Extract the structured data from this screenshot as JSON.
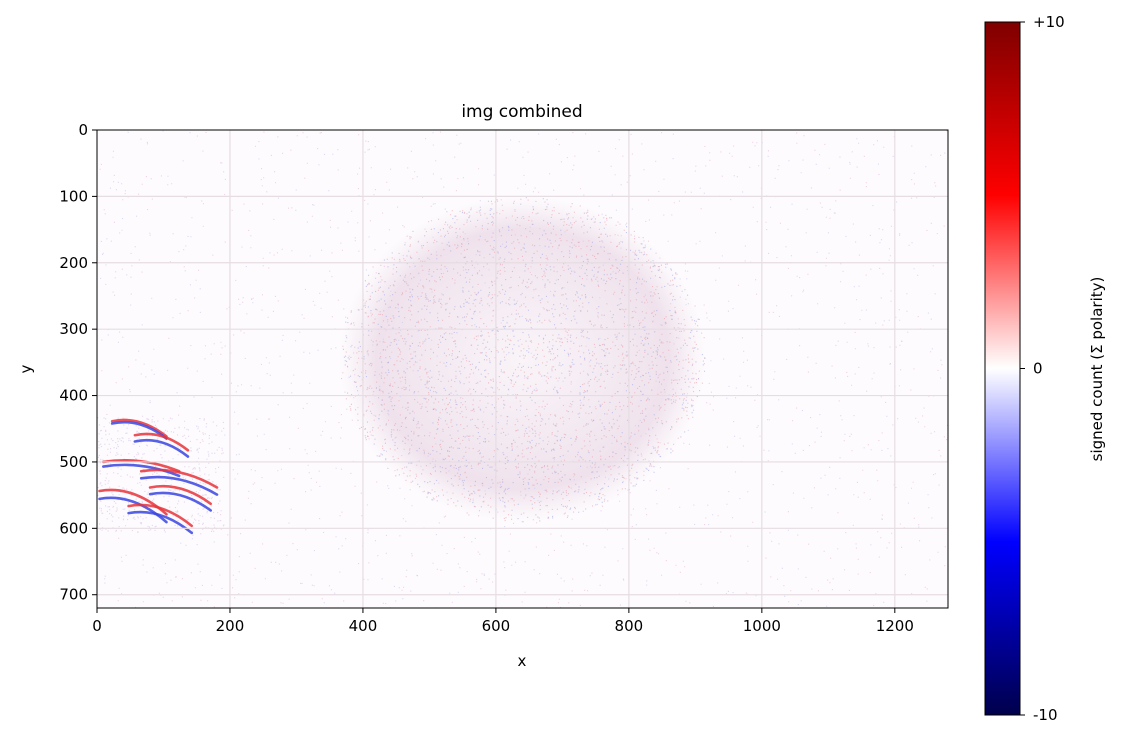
{
  "chart_data": {
    "type": "heatmap",
    "title": "img combined",
    "xlabel": "x",
    "ylabel": "y",
    "xlim": [
      0,
      1280
    ],
    "ylim": [
      720,
      0
    ],
    "y_inverted": true,
    "grid": true,
    "x_ticks": [
      0,
      200,
      400,
      600,
      800,
      1000,
      1200
    ],
    "y_ticks": [
      0,
      100,
      200,
      300,
      400,
      500,
      600,
      700
    ],
    "colorbar": {
      "label": "signed count (Σ polarity)",
      "colormap": "seismic",
      "range": [
        -10,
        10
      ],
      "ticks": [
        {
          "value": 10,
          "label": "+10"
        },
        {
          "value": 0,
          "label": "0"
        },
        {
          "value": -10,
          "label": "-10"
        }
      ],
      "colors": {
        "low": "#00004c",
        "mid_low": "#0000ff",
        "center": "#ffffff",
        "mid_high": "#ff0000",
        "high": "#7f0000"
      }
    },
    "features": [
      {
        "name": "elliptical event cloud",
        "center": [
          640,
          345
        ],
        "radii": [
          275,
          245
        ],
        "intensity": "low",
        "polarity": "mixed"
      },
      {
        "name": "hand-shaped event cluster",
        "x_range": [
          0,
          190
        ],
        "y_range": [
          430,
          605
        ],
        "intensity": "high",
        "polarity": "alternating red/blue edges"
      }
    ]
  }
}
